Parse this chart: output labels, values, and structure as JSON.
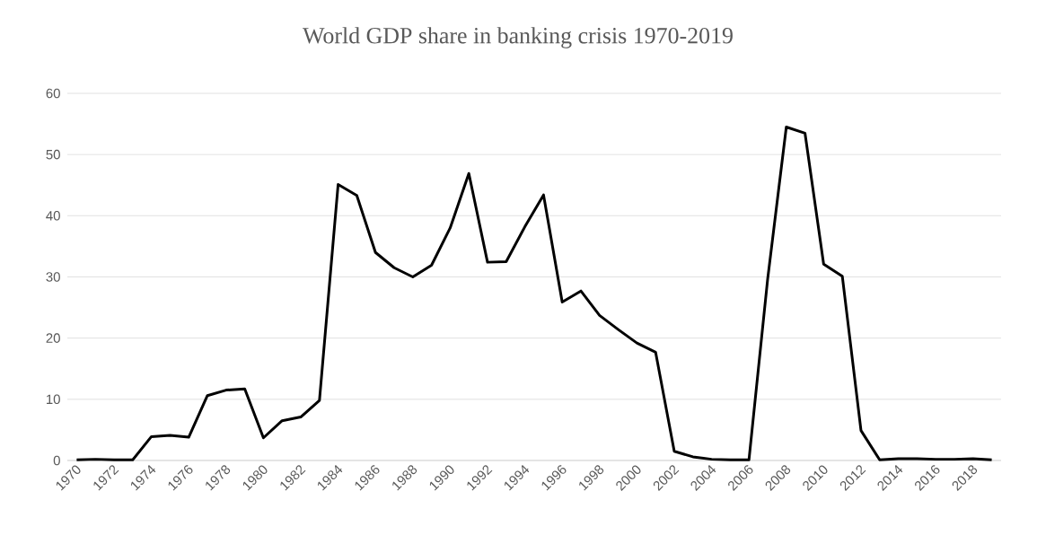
{
  "chart_data": {
    "type": "line",
    "title": "World GDP share in banking crisis 1970-2019",
    "categories": [
      "1970",
      null,
      "1972",
      null,
      "1974",
      null,
      "1976",
      null,
      "1978",
      null,
      "1980",
      null,
      "1982",
      null,
      "1984",
      null,
      "1986",
      null,
      "1988",
      null,
      "1990",
      null,
      "1992",
      null,
      "1994",
      null,
      "1996",
      null,
      "1998",
      null,
      "2000",
      null,
      "2002",
      null,
      "2004",
      null,
      "2006",
      null,
      "2008",
      null,
      "2010",
      null,
      "2012",
      null,
      "2014",
      null,
      "2016",
      null,
      "2018",
      null
    ],
    "values": [
      0.1,
      0.2,
      0.1,
      0.1,
      3.9,
      4.1,
      3.8,
      10.6,
      11.5,
      11.7,
      3.7,
      6.5,
      7.1,
      9.8,
      45.1,
      43.3,
      34.0,
      31.5,
      30.0,
      31.9,
      38.0,
      46.9,
      32.4,
      32.5,
      38.2,
      43.4,
      25.9,
      27.7,
      23.7,
      21.4,
      19.2,
      17.7,
      1.5,
      0.6,
      0.2,
      0.1,
      0.1,
      29.6,
      54.5,
      53.5,
      32.1,
      30.1,
      4.9,
      0.1,
      0.3,
      0.3,
      0.2,
      0.2,
      0.3,
      0.1
    ],
    "color": "#000000",
    "ylim": [
      0,
      60
    ],
    "yticks": [
      0,
      10,
      20,
      30,
      40,
      50,
      60
    ],
    "grid": "y",
    "marker": "none",
    "line_style": "solid"
  }
}
